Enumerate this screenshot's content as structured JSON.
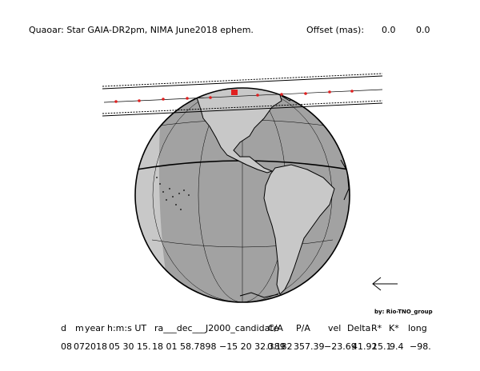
{
  "header": {
    "title": "Quaoar: Star GAIA-DR2pm, NIMA June2018 ephem.",
    "offset_label": "Offset (mas):",
    "offset_x": "0.0",
    "offset_y": "0.0"
  },
  "credit": "by: Rio-TNO_group",
  "table": {
    "headers": [
      "d",
      "m",
      "year",
      "h:m:s UT",
      "ra___dec___J2000_candidate",
      "C/A",
      "P/A",
      "vel",
      "Delta",
      "R*",
      "K*",
      "long"
    ],
    "values": [
      "08",
      "07",
      "2018",
      "05 30 15.",
      "18 01 58.7898 −15 20 32.389",
      "0.182",
      "357.39",
      "−23.69",
      "41.92",
      "15.1",
      "9.4",
      "−98."
    ]
  },
  "colors": {
    "day": "#c8c8c8",
    "night": "#a2a2a2",
    "land_outline": "#000000",
    "path_dots": "#e02020"
  },
  "icons": {
    "direction": "arrow-left-icon"
  }
}
